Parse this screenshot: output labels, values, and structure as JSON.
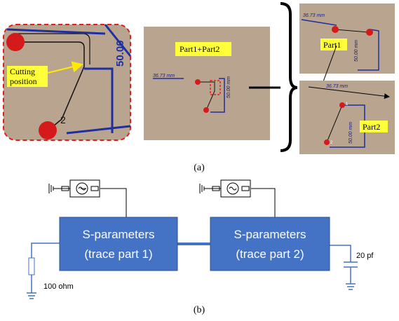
{
  "figure": {
    "panel_a": {
      "zoom": {
        "cut_label": [
          "Cutting",
          "position"
        ],
        "node": "2",
        "dim": "50.00"
      },
      "combined": {
        "title": "Part1+Part2",
        "dim_h": "36.73 mm",
        "dim_v": "50.00 mm"
      },
      "part1": {
        "title": "Part1",
        "dim_h": "36.73 mm",
        "dim_v": "50.00 mm"
      },
      "part2": {
        "title": "Part2",
        "dim_h": "36.73 mm",
        "dim_v": "50.00 mm",
        "node1": "1",
        "node2": "2"
      },
      "caption": "(a)"
    },
    "panel_b": {
      "block1": [
        "S-parameters",
        "(trace part 1)"
      ],
      "block2": [
        "S-parameters",
        "(trace part 2)"
      ],
      "resistor": "100 ohm",
      "capacitor": "20 pf",
      "caption": "(b)"
    }
  }
}
